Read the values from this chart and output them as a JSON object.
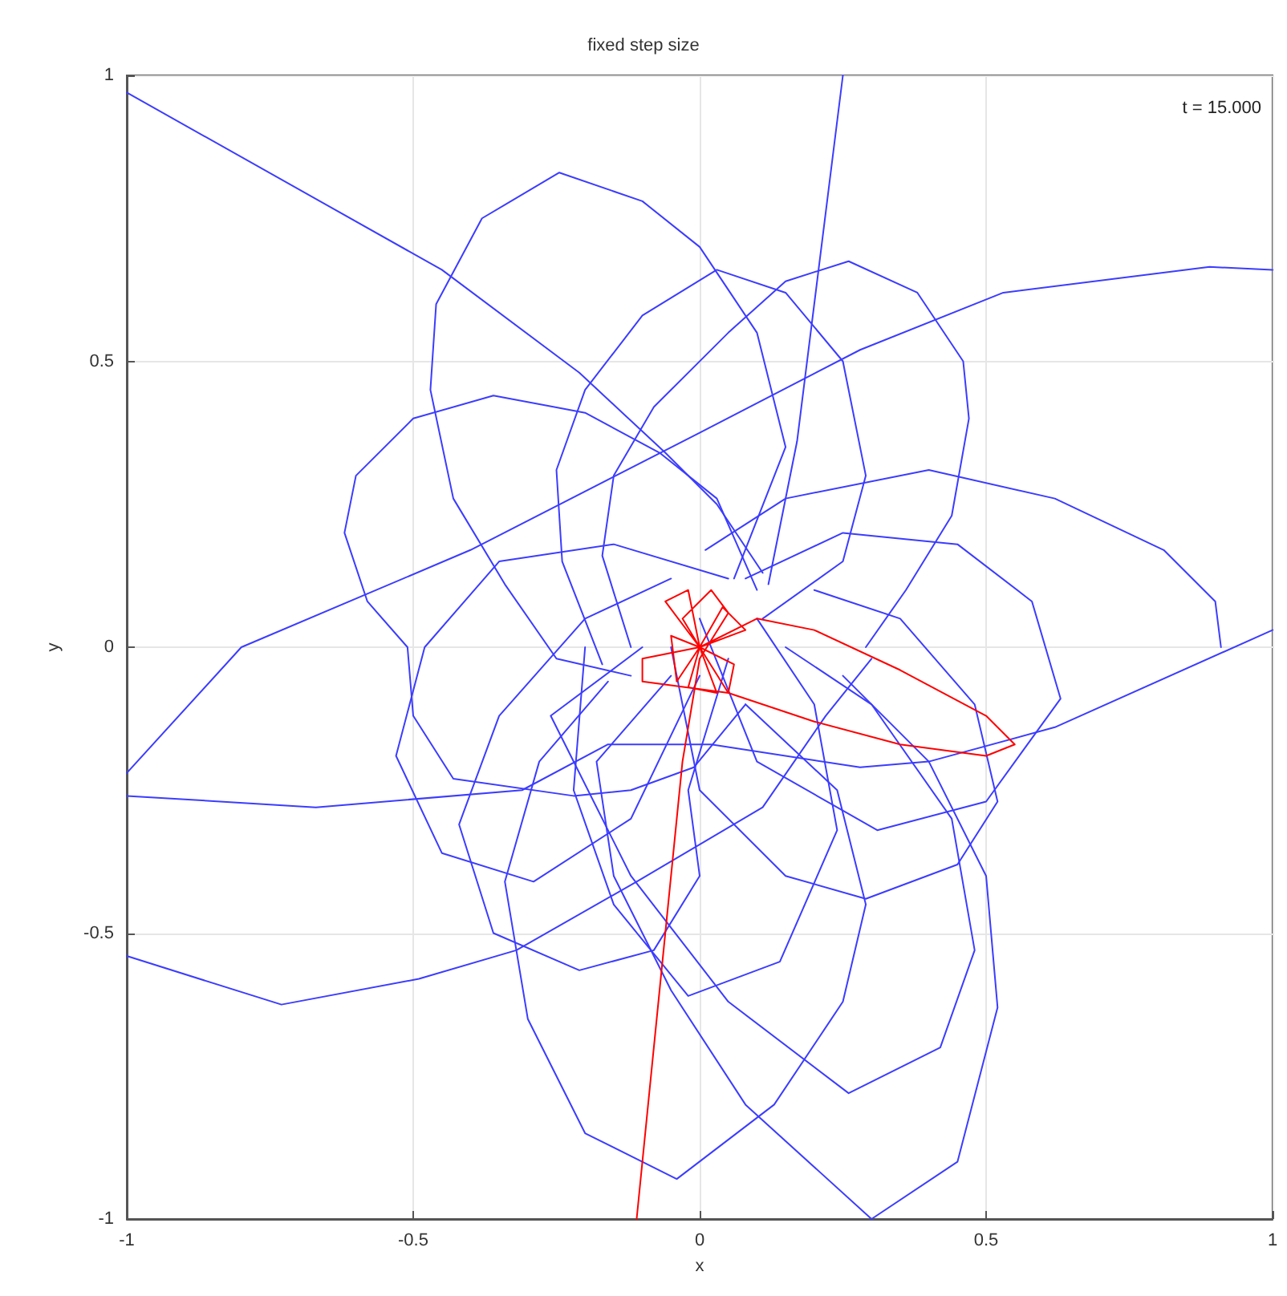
{
  "chart_data": {
    "type": "line",
    "title": "fixed step size",
    "xlabel": "x",
    "ylabel": "y",
    "xlim": [
      -1,
      1
    ],
    "ylim": [
      -1,
      1
    ],
    "xticks": [
      -1,
      -0.5,
      0,
      0.5,
      1
    ],
    "yticks": [
      -1,
      -0.5,
      0,
      0.5,
      1
    ],
    "grid": true,
    "marker": "none",
    "line_style": "solid",
    "annotations": [
      "t = 15.000"
    ],
    "series": [
      {
        "color": "#3c3cff",
        "x": [
          0.06,
          0.15,
          0.1,
          0.0,
          -0.1,
          -0.245,
          -0.38,
          -0.46,
          -0.47,
          -0.43,
          -0.34,
          -0.25,
          -0.12
        ],
        "values": [
          0.12,
          0.35,
          0.55,
          0.7,
          0.78,
          0.83,
          0.75,
          0.6,
          0.45,
          0.26,
          0.11,
          -0.02,
          -0.05
        ]
      },
      {
        "color": "#3c3cff",
        "x": [
          -0.17,
          -0.24,
          -0.25,
          -0.2,
          -0.1,
          0.03,
          0.15,
          0.25,
          0.29,
          0.25,
          0.11
        ],
        "values": [
          -0.03,
          0.15,
          0.31,
          0.45,
          0.58,
          0.66,
          0.62,
          0.5,
          0.3,
          0.15,
          0.05
        ]
      },
      {
        "color": "#3c3cff",
        "x": [
          -0.12,
          -0.17,
          -0.15,
          -0.08,
          0.05,
          0.15,
          0.26,
          0.38,
          0.46,
          0.47,
          0.44,
          0.36,
          0.29
        ],
        "values": [
          0.0,
          0.16,
          0.3,
          0.42,
          0.55,
          0.64,
          0.675,
          0.62,
          0.5,
          0.4,
          0.23,
          0.1,
          0.0
        ]
      },
      {
        "color": "#3c3cff",
        "x": [
          0.1,
          0.03,
          -0.07,
          -0.2,
          -0.36,
          -0.5,
          -0.6,
          -0.62,
          -0.58,
          -0.51,
          -0.5,
          -0.43,
          -0.22,
          -0.12,
          -0.01,
          0.08
        ],
        "values": [
          0.1,
          0.26,
          0.34,
          0.41,
          0.44,
          0.4,
          0.3,
          0.2,
          0.08,
          0.0,
          -0.12,
          -0.23,
          -0.26,
          -0.25,
          -0.21,
          -0.1
        ]
      },
      {
        "color": "#3c3cff",
        "x": [
          -1,
          -0.8,
          -0.4,
          0.0,
          0.28,
          0.53,
          0.89,
          1
        ],
        "values": [
          -0.22,
          0.0,
          0.17,
          0.375,
          0.52,
          0.62,
          0.665,
          0.66
        ]
      },
      {
        "color": "#3c3cff",
        "x": [
          -1,
          -0.45,
          -0.21,
          -0.06,
          0.03,
          0.11
        ],
        "values": [
          0.97,
          0.66,
          0.48,
          0.34,
          0.25,
          0.13
        ]
      },
      {
        "color": "#3c3cff",
        "x": [
          0.12,
          0.17,
          0.25
        ],
        "values": [
          0.11,
          0.36,
          1
        ]
      },
      {
        "color": "#3c3cff",
        "x": [
          0.01,
          0.15,
          0.4,
          0.62,
          0.81,
          0.9,
          0.91
        ],
        "values": [
          0.17,
          0.26,
          0.31,
          0.26,
          0.17,
          0.08,
          0.0
        ]
      },
      {
        "color": "#3c3cff",
        "x": [
          1,
          0.62,
          0.4,
          0.28,
          0.02,
          -0.16,
          -0.31,
          -0.67,
          -1
        ],
        "values": [
          0.03,
          -0.14,
          -0.2,
          -0.21,
          -0.17,
          -0.17,
          -0.25,
          -0.28,
          -0.26
        ]
      },
      {
        "color": "#3c3cff",
        "x": [
          -1,
          -0.73,
          -0.49,
          -0.32,
          -0.11,
          0.11,
          0.22,
          0.3
        ],
        "values": [
          -0.54,
          -0.625,
          -0.58,
          -0.53,
          -0.41,
          -0.28,
          -0.12,
          -0.02
        ]
      },
      {
        "color": "#3c3cff",
        "x": [
          0.08,
          0.24,
          0.29,
          0.25,
          0.13,
          -0.04,
          -0.2,
          -0.3,
          -0.34,
          -0.28,
          -0.16
        ],
        "values": [
          -0.1,
          -0.25,
          -0.45,
          -0.62,
          -0.8,
          -0.93,
          -0.85,
          -0.65,
          -0.41,
          -0.2,
          -0.06
        ]
      },
      {
        "color": "#3c3cff",
        "x": [
          -0.05,
          -0.18,
          -0.15,
          -0.05,
          0.08,
          0.3,
          0.45,
          0.52,
          0.5,
          0.4,
          0.25
        ],
        "values": [
          -0.05,
          -0.2,
          -0.4,
          -0.6,
          -0.8,
          -1.0,
          -0.9,
          -0.63,
          -0.4,
          -0.2,
          -0.05
        ]
      },
      {
        "color": "#3c3cff",
        "x": [
          -0.1,
          -0.26,
          -0.12,
          0.05,
          0.26,
          0.42,
          0.48,
          0.44,
          0.3,
          0.15
        ],
        "values": [
          0.0,
          -0.12,
          -0.4,
          -0.62,
          -0.78,
          -0.7,
          -0.53,
          -0.3,
          -0.1,
          0.0
        ]
      },
      {
        "color": "#3c3cff",
        "x": [
          0.05,
          -0.02,
          0.0,
          -0.08,
          -0.21,
          -0.36,
          -0.42,
          -0.35,
          -0.2,
          -0.05
        ],
        "values": [
          -0.02,
          -0.25,
          -0.4,
          -0.53,
          -0.565,
          -0.5,
          -0.31,
          -0.12,
          0.05,
          0.12
        ]
      },
      {
        "color": "#3c3cff",
        "x": [
          -0.2,
          -0.22,
          -0.15,
          -0.02,
          0.14,
          0.24,
          0.2,
          0.1
        ],
        "values": [
          0.0,
          -0.25,
          -0.45,
          -0.61,
          -0.55,
          -0.32,
          -0.1,
          0.05
        ]
      },
      {
        "color": "#3c3cff",
        "x": [
          -0.05,
          0.0,
          0.15,
          0.29,
          0.45,
          0.52,
          0.48,
          0.35,
          0.2
        ],
        "values": [
          0.0,
          -0.25,
          -0.4,
          -0.44,
          -0.38,
          -0.27,
          -0.1,
          0.05,
          0.1
        ]
      },
      {
        "color": "#3c3cff",
        "x": [
          0.0,
          0.1,
          0.31,
          0.5,
          0.63,
          0.58,
          0.45,
          0.25,
          0.08
        ],
        "values": [
          0.05,
          -0.2,
          -0.32,
          -0.27,
          -0.09,
          0.08,
          0.18,
          0.2,
          0.12
        ]
      },
      {
        "color": "#3c3cff",
        "x": [
          0.0,
          -0.12,
          -0.29,
          -0.45,
          -0.53,
          -0.48,
          -0.35,
          -0.15,
          0.05
        ],
        "values": [
          -0.05,
          -0.3,
          -0.41,
          -0.36,
          -0.19,
          0.0,
          0.15,
          0.18,
          0.12
        ]
      },
      {
        "color": "#ff0000",
        "x": [
          -0.11,
          -0.07,
          -0.03,
          0.0,
          0.05,
          0.02,
          -0.03,
          0.0,
          -0.05,
          -0.04,
          0.0,
          0.06,
          0.05,
          0.0,
          0.04,
          0.08,
          0.0,
          -0.06,
          -0.02,
          0.0,
          0.03,
          -0.02,
          0.0,
          0.1,
          0.2,
          0.35,
          0.5,
          0.55,
          0.5,
          0.35,
          0.2,
          0.05,
          -0.1,
          -0.1,
          0.0
        ],
        "values": [
          -1.0,
          -0.6,
          -0.2,
          -0.02,
          0.06,
          0.1,
          0.05,
          0.0,
          0.02,
          -0.06,
          0.0,
          -0.03,
          -0.08,
          0.0,
          0.07,
          0.03,
          0.0,
          0.08,
          0.1,
          0.0,
          -0.08,
          -0.07,
          0.0,
          0.05,
          0.03,
          -0.04,
          -0.12,
          -0.17,
          -0.19,
          -0.17,
          -0.13,
          -0.08,
          -0.06,
          -0.02,
          0.0
        ]
      }
    ]
  }
}
